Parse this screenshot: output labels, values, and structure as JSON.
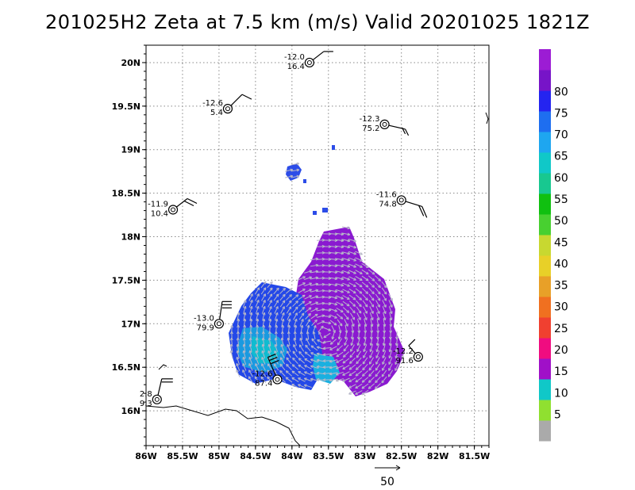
{
  "title": "201025H2  Zeta at 7.5 km (m/s) Valid 20201025  1821Z",
  "map": {
    "lon_range": [
      -86.0,
      -81.3
    ],
    "lat_range": [
      15.6,
      20.2
    ],
    "x_ticks": [
      {
        "lon": -86.0,
        "label": "86W"
      },
      {
        "lon": -85.5,
        "label": "85.5W"
      },
      {
        "lon": -85.0,
        "label": "85W"
      },
      {
        "lon": -84.5,
        "label": "84.5W"
      },
      {
        "lon": -84.0,
        "label": "84W"
      },
      {
        "lon": -83.5,
        "label": "83.5W"
      },
      {
        "lon": -83.0,
        "label": "83W"
      },
      {
        "lon": -82.5,
        "label": "82.5W"
      },
      {
        "lon": -82.0,
        "label": "82W"
      },
      {
        "lon": -81.5,
        "label": "81.5W"
      }
    ],
    "y_ticks": [
      {
        "lat": 16.0,
        "label": "16N"
      },
      {
        "lat": 16.5,
        "label": "16.5N"
      },
      {
        "lat": 17.0,
        "label": "17N"
      },
      {
        "lat": 17.5,
        "label": "17.5N"
      },
      {
        "lat": 18.0,
        "label": "18N"
      },
      {
        "lat": 18.5,
        "label": "18.5N"
      },
      {
        "lat": 19.0,
        "label": "19N"
      },
      {
        "lat": 19.5,
        "label": "19.5N"
      },
      {
        "lat": 20.0,
        "label": "20N"
      }
    ],
    "grid": true
  },
  "stations": [
    {
      "lon": -83.76,
      "lat": 20.0,
      "temp": "-12.0",
      "rh": "16.4"
    },
    {
      "lon": -84.88,
      "lat": 19.47,
      "temp": "-12.6",
      "rh": "5.4"
    },
    {
      "lon": -82.73,
      "lat": 19.29,
      "temp": "-12.3",
      "rh": "75.2"
    },
    {
      "lon": -85.63,
      "lat": 18.31,
      "temp": "-11.9",
      "rh": "10.4"
    },
    {
      "lon": -82.5,
      "lat": 18.42,
      "temp": "-11.6",
      "rh": "74.8"
    },
    {
      "lon": -85.0,
      "lat": 17.0,
      "temp": "-13.0",
      "rh": "79.9"
    },
    {
      "lon": -84.2,
      "lat": 16.36,
      "temp": "-12.6",
      "rh": "87.4"
    },
    {
      "lon": -82.27,
      "lat": 16.62,
      "temp": "-12.2",
      "rh": "91.6"
    },
    {
      "lon": -85.85,
      "lat": 16.13,
      "temp": "2.8",
      "rh": "9.3"
    }
  ],
  "colorbar": {
    "labels": [
      "5",
      "10",
      "15",
      "20",
      "25",
      "30",
      "35",
      "40",
      "45",
      "50",
      "55",
      "60",
      "65",
      "70",
      "75",
      "80"
    ],
    "colors": [
      "#9c1cd4",
      "#7714c8",
      "#2424f0",
      "#1e6ef0",
      "#1ea6f0",
      "#10c8c8",
      "#18c890",
      "#10c010",
      "#48d030",
      "#c8d830",
      "#e8d028",
      "#e8a028",
      "#f07020",
      "#f04030",
      "#f00c80",
      "#a010c8",
      "#10c8c8",
      "#90e030",
      "#aaaaaa"
    ]
  },
  "reference_vector": {
    "label": "50"
  }
}
